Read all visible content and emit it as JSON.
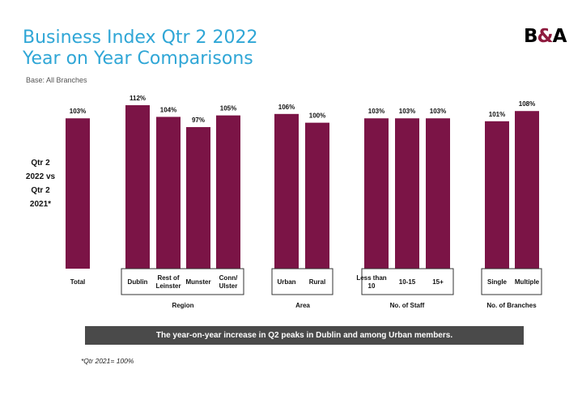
{
  "header": {
    "title_line1": "Business Index Qtr 2 2022",
    "title_line2": "Year on Year Comparisons",
    "base": "Base:  All Branches"
  },
  "logo": {
    "left": "B",
    "amp": "&",
    "right": "A"
  },
  "side_label": [
    "Qtr 2",
    "2022 vs",
    "Qtr 2",
    "2021*"
  ],
  "note": "The year-on-year increase in Q2 peaks in Dublin and among Urban members.",
  "footnote": "*Qtr  2021= 100%",
  "colors": {
    "bar": "#7b1446",
    "title": "#2fa6d6",
    "note_bg": "#4a4a4a"
  },
  "chart_data": {
    "type": "bar",
    "ylim": [
      0,
      112
    ],
    "groups": [
      {
        "name": "",
        "bars": [
          {
            "label": [
              "Total"
            ],
            "value": 103
          }
        ]
      },
      {
        "name": "Region",
        "bars": [
          {
            "label": [
              "Dublin"
            ],
            "value": 112
          },
          {
            "label": [
              "Rest of",
              "Leinster"
            ],
            "value": 104
          },
          {
            "label": [
              "Munster"
            ],
            "value": 97
          },
          {
            "label": [
              "Conn/",
              "Ulster"
            ],
            "value": 105
          }
        ]
      },
      {
        "name": "Area",
        "bars": [
          {
            "label": [
              "Urban"
            ],
            "value": 106
          },
          {
            "label": [
              "Rural"
            ],
            "value": 100
          }
        ]
      },
      {
        "name": "No. of Staff",
        "bars": [
          {
            "label": [
              "Less than",
              "10"
            ],
            "value": 103
          },
          {
            "label": [
              "10-15"
            ],
            "value": 103
          },
          {
            "label": [
              "15+"
            ],
            "value": 103
          }
        ]
      },
      {
        "name": "No. of Branches",
        "bars": [
          {
            "label": [
              "Single"
            ],
            "value": 101
          },
          {
            "label": [
              "Multiple"
            ],
            "value": 108
          }
        ]
      }
    ]
  }
}
